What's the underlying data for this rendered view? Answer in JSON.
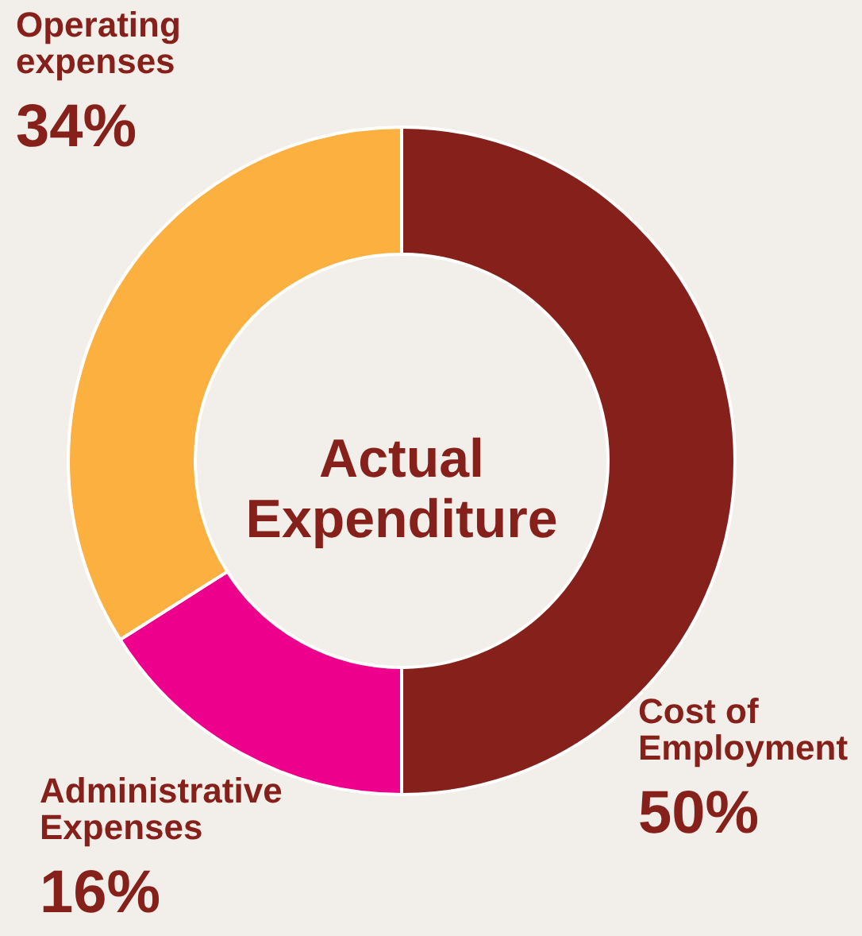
{
  "chart_data": {
    "type": "donut",
    "title": "Actual Expenditure",
    "categories": [
      "Cost of Employment",
      "Administrative Expenses",
      "Operating expenses"
    ],
    "values": [
      50,
      16,
      34
    ],
    "colors": [
      "#86201a",
      "#ec008c",
      "#fbb040"
    ],
    "value_labels": [
      "50%",
      "16%",
      "34%"
    ]
  }
}
